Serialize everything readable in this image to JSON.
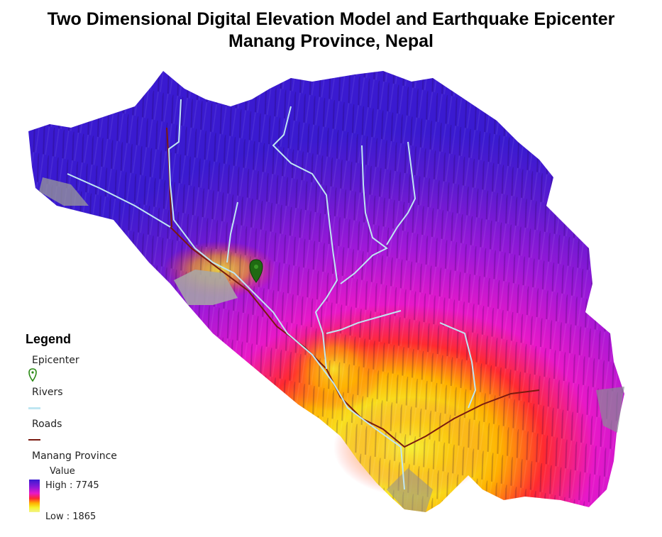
{
  "title": {
    "line1": "Two Dimensional Digital Elevation Model and Earthquake Epicenter",
    "line2": "Manang Province, Nepal"
  },
  "legend": {
    "title": "Legend",
    "epicenter_label": "Epicenter",
    "rivers_label": "Rivers",
    "roads_label": "Roads",
    "province_label": "Manang Province",
    "value_label": "Value",
    "high_label": "High : 7745",
    "low_label": "Low : 1865"
  },
  "colors": {
    "high": "#3a1ad0",
    "mid_high": "#e818c8",
    "mid": "#ff2a30",
    "mid_low": "#ffb000",
    "low": "#f3f38a",
    "river": "#bfe6f2",
    "road": "#7a1a10",
    "epicenter": "#1f6a12"
  },
  "elevation": {
    "high": 7745,
    "low": 1865
  }
}
